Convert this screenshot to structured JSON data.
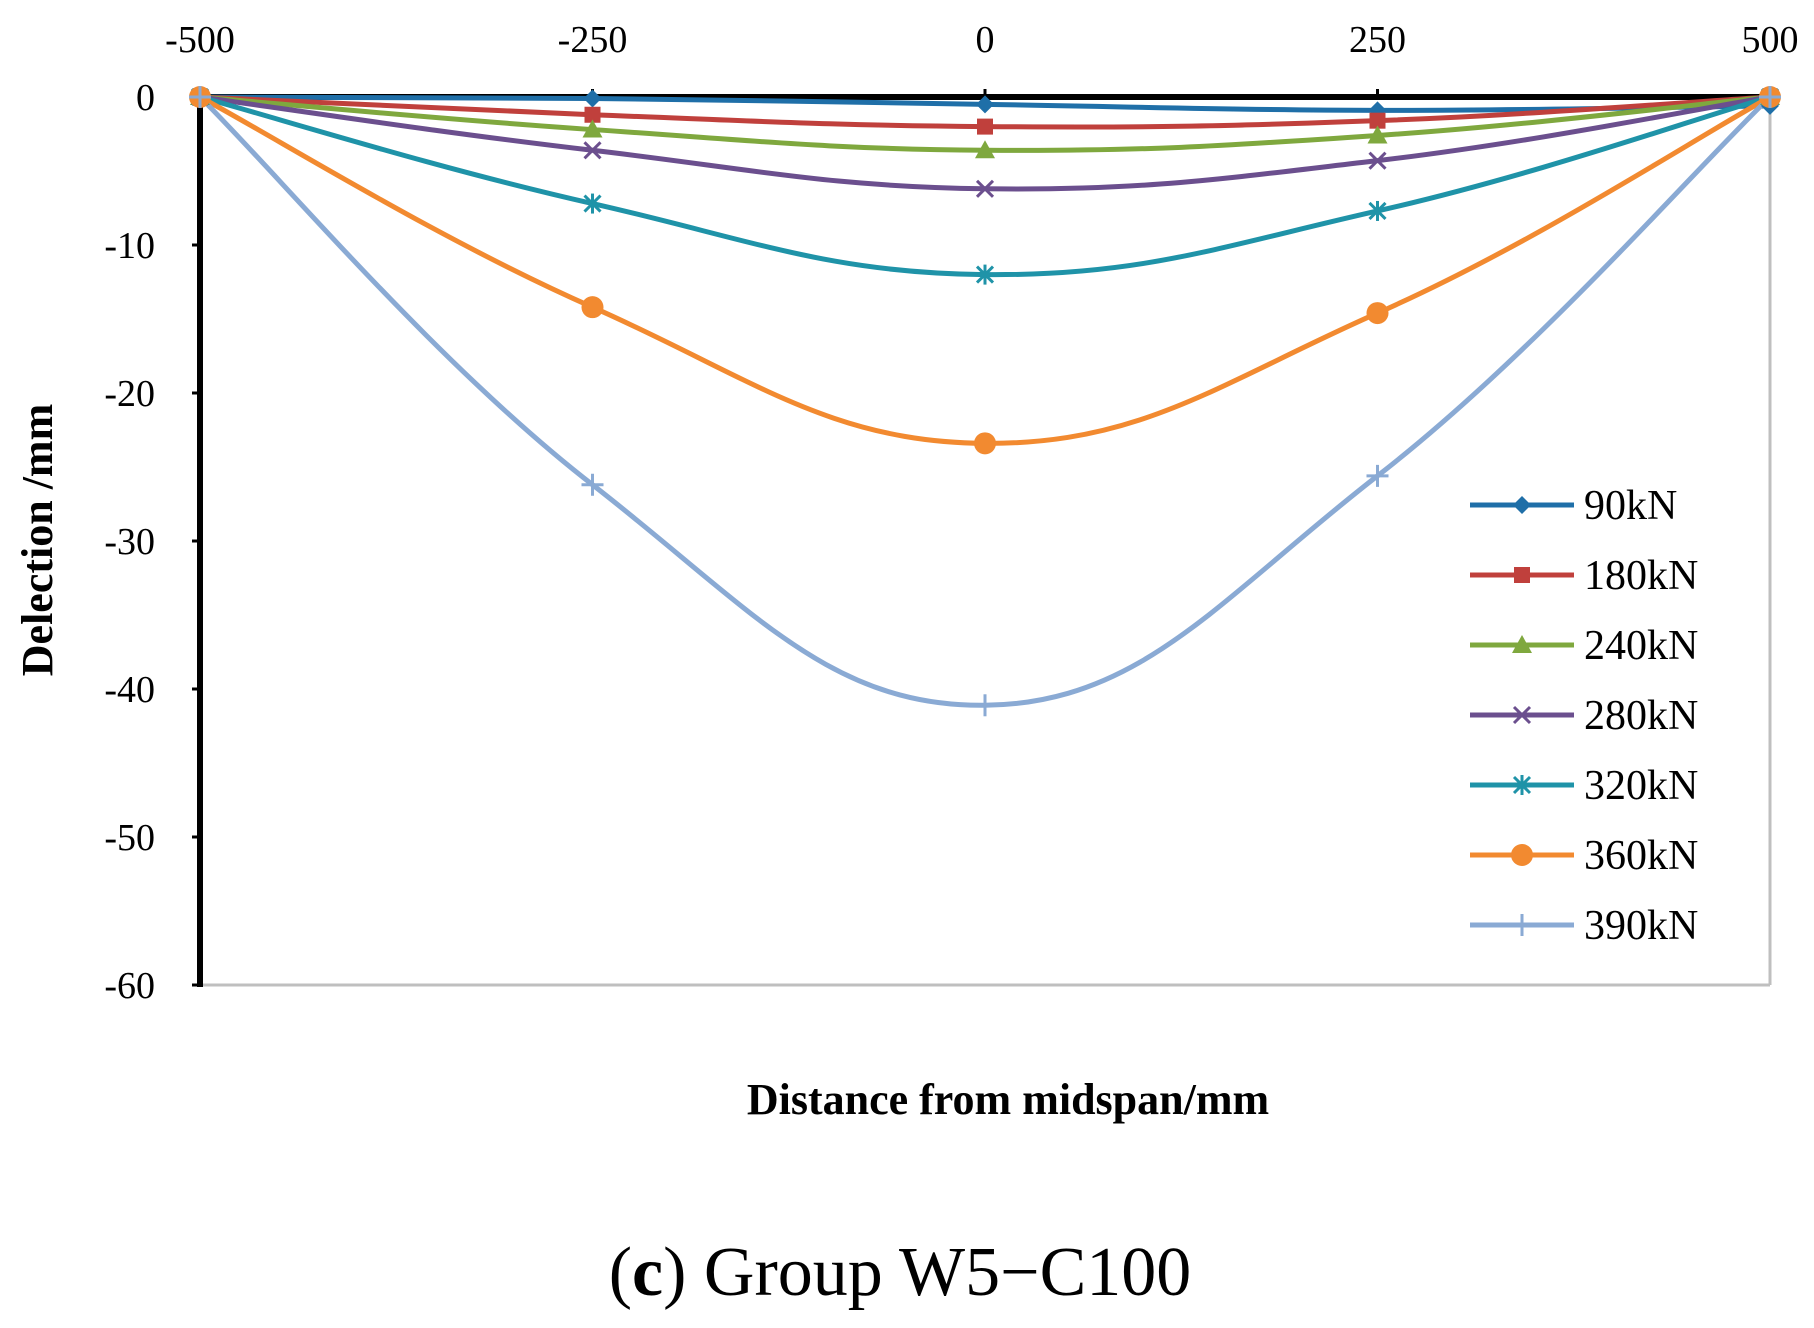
{
  "chart_data": {
    "type": "line",
    "title": "",
    "xlabel": "Distance from midspan/mm",
    "ylabel": "Delection /mm",
    "xlim": [
      -500,
      500
    ],
    "ylim": [
      -60,
      0
    ],
    "x_ticks": [
      "-500",
      "-250",
      "0",
      "250",
      "500"
    ],
    "y_ticks": [
      "0",
      "-10",
      "-20",
      "-30",
      "-40",
      "-50",
      "-60"
    ],
    "x_tick_values": [
      -500,
      -250,
      0,
      250,
      500
    ],
    "y_tick_values": [
      0,
      -10,
      -20,
      -30,
      -40,
      -50,
      -60
    ],
    "x_axis_position": "top",
    "grid": false,
    "legend_position": "right",
    "x": [
      -500,
      -250,
      0,
      250,
      500
    ],
    "series": [
      {
        "name": "90kN",
        "color": "#1f6fa8",
        "marker": "diamond",
        "values": [
          0,
          -0.1,
          -0.5,
          -0.9,
          -0.6
        ]
      },
      {
        "name": "180kN",
        "color": "#c0403c",
        "marker": "square",
        "values": [
          0,
          -1.2,
          -2.0,
          -1.6,
          0
        ]
      },
      {
        "name": "240kN",
        "color": "#7fa83e",
        "marker": "triangle",
        "values": [
          0,
          -2.2,
          -3.6,
          -2.6,
          0
        ]
      },
      {
        "name": "280kN",
        "color": "#6b4f8e",
        "marker": "x",
        "values": [
          0,
          -3.6,
          -6.2,
          -4.3,
          0
        ]
      },
      {
        "name": "320kN",
        "color": "#1f93a8",
        "marker": "star",
        "values": [
          0,
          -7.2,
          -12.0,
          -7.7,
          0
        ]
      },
      {
        "name": "360kN",
        "color": "#f28a30",
        "marker": "circle",
        "values": [
          0,
          -14.2,
          -23.4,
          -14.6,
          0
        ]
      },
      {
        "name": "390kN",
        "color": "#8aaad4",
        "marker": "plus",
        "values": [
          0,
          -26.2,
          -41.1,
          -25.6,
          0
        ]
      }
    ]
  },
  "caption": {
    "prefix": "(",
    "letter": "c",
    "text": ") Group W5−C100"
  }
}
